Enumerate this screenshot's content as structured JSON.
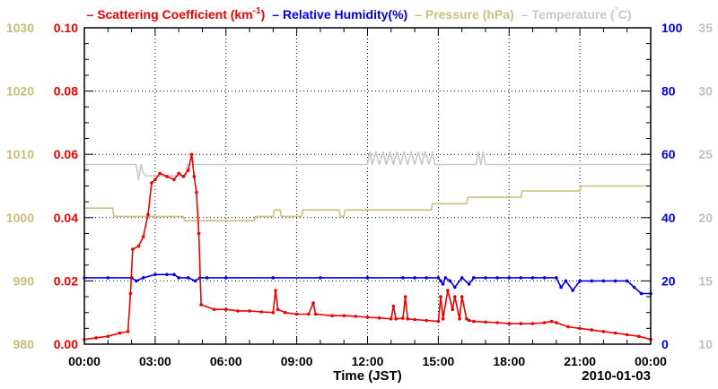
{
  "chart_data": {
    "type": "line",
    "xlabel": "Time (JST)",
    "date_label": "2010-01-03",
    "x_ticks": [
      "00:00",
      "03:00",
      "06:00",
      "09:00",
      "12:00",
      "15:00",
      "18:00",
      "21:00",
      "00:00"
    ],
    "xlim": [
      0,
      24
    ],
    "grid": true,
    "legend": [
      {
        "label": "Scattering Coefficient (km",
        "sup": "-1",
        "tail": ")",
        "color": "#ee0000",
        "marker": "–"
      },
      {
        "label": "Relative Humidity(%)",
        "color": "#0000dd",
        "marker": "–"
      },
      {
        "label": "Pressure (hPa)",
        "color": "#ccc080",
        "marker": "–"
      },
      {
        "label": "Temperature (",
        "sup": "°",
        "tail": "C)",
        "color": "#c8c8c8",
        "marker": "–"
      }
    ],
    "axes": {
      "pressure": {
        "side": "left-outer",
        "color": "#c8bc78",
        "range": [
          980,
          1030
        ],
        "ticks": [
          "980",
          "990",
          "1000",
          "1010",
          "1020",
          "1030"
        ]
      },
      "scattering": {
        "side": "left-inner",
        "color": "#ee0000",
        "range": [
          0,
          0.1
        ],
        "ticks": [
          "0.00",
          "0.02",
          "0.04",
          "0.06",
          "0.08",
          "0.10"
        ]
      },
      "humidity": {
        "side": "right-inner",
        "color": "#0000dd",
        "range": [
          0,
          100
        ],
        "ticks": [
          "0",
          "20",
          "40",
          "60",
          "80",
          "100"
        ]
      },
      "temperature": {
        "side": "right-outer",
        "color": "#c0c0c0",
        "range": [
          10,
          35
        ],
        "ticks": [
          "10",
          "15",
          "20",
          "25",
          "30",
          "35"
        ]
      }
    },
    "series": [
      {
        "name": "Scattering Coefficient",
        "axis": "scattering",
        "color": "#ee0000",
        "markers": true,
        "x": [
          0,
          0.5,
          1.0,
          1.5,
          1.85,
          1.95,
          2.05,
          2.3,
          2.5,
          2.7,
          2.85,
          3.0,
          3.2,
          3.5,
          3.8,
          4.0,
          4.2,
          4.4,
          4.55,
          4.65,
          4.75,
          4.85,
          4.95,
          5.5,
          6.0,
          6.5,
          7.0,
          7.5,
          8.0,
          8.1,
          8.2,
          8.5,
          9.0,
          9.5,
          9.7,
          9.8,
          10.5,
          11.0,
          11.5,
          12.0,
          12.5,
          13.0,
          13.1,
          13.2,
          13.5,
          13.6,
          13.7,
          14.0,
          14.5,
          15.0,
          15.1,
          15.2,
          15.4,
          15.6,
          15.7,
          15.9,
          16.0,
          16.2,
          16.3,
          16.5,
          17.0,
          17.5,
          18.0,
          18.5,
          19.0,
          19.5,
          19.8,
          20.0,
          20.5,
          21.0,
          21.5,
          22.0,
          22.5,
          23.0,
          23.5,
          24.0
        ],
        "y": [
          0.0015,
          0.002,
          0.0025,
          0.0035,
          0.004,
          0.016,
          0.03,
          0.031,
          0.034,
          0.041,
          0.051,
          0.052,
          0.054,
          0.053,
          0.052,
          0.054,
          0.053,
          0.055,
          0.06,
          0.053,
          0.048,
          0.035,
          0.0125,
          0.011,
          0.011,
          0.0105,
          0.0105,
          0.0102,
          0.01,
          0.017,
          0.011,
          0.01,
          0.0095,
          0.0095,
          0.013,
          0.0095,
          0.009,
          0.009,
          0.0088,
          0.0085,
          0.0083,
          0.008,
          0.012,
          0.008,
          0.0082,
          0.015,
          0.008,
          0.0078,
          0.0075,
          0.0072,
          0.015,
          0.008,
          0.017,
          0.011,
          0.015,
          0.008,
          0.015,
          0.008,
          0.0075,
          0.0072,
          0.007,
          0.0068,
          0.0065,
          0.0065,
          0.0065,
          0.0068,
          0.0072,
          0.0068,
          0.0055,
          0.005,
          0.0045,
          0.004,
          0.0035,
          0.003,
          0.0025,
          0.0015
        ]
      },
      {
        "name": "Relative Humidity",
        "axis": "humidity",
        "color": "#0000dd",
        "markers": true,
        "x": [
          0,
          1.0,
          2.0,
          2.2,
          2.5,
          3.0,
          3.5,
          3.8,
          4.0,
          4.4,
          4.7,
          4.9,
          5.2,
          6.0,
          8.0,
          10.0,
          12.0,
          13.5,
          14.0,
          14.5,
          15.0,
          15.1,
          15.2,
          15.3,
          15.5,
          15.7,
          16.0,
          16.3,
          16.5,
          17.0,
          17.5,
          18.0,
          18.5,
          19.0,
          19.5,
          20.0,
          20.2,
          20.4,
          20.7,
          21.0,
          21.5,
          22.0,
          22.5,
          23.0,
          23.3,
          23.6,
          24.0
        ],
        "y": [
          21,
          21,
          21,
          20,
          21,
          22,
          22,
          22,
          21,
          21,
          20,
          21,
          21,
          21,
          21,
          21,
          21,
          21,
          21,
          21,
          21,
          20,
          19,
          21,
          20,
          18,
          21,
          19,
          21,
          21,
          21,
          21,
          21,
          21,
          21,
          21,
          18,
          20,
          17,
          20,
          20,
          20,
          20,
          20,
          18,
          16,
          16
        ]
      },
      {
        "name": "Pressure",
        "axis": "pressure",
        "color": "#ccc080",
        "markers": false,
        "x": [
          0,
          1.2,
          1.25,
          4.2,
          4.25,
          7.2,
          7.25,
          8.0,
          8.05,
          8.3,
          8.35,
          9.2,
          9.25,
          10.8,
          10.85,
          11.0,
          11.05,
          14.7,
          14.75,
          16.2,
          16.25,
          18.5,
          18.55,
          21.0,
          21.05,
          24.0
        ],
        "y": [
          1001.5,
          1001.5,
          1000.2,
          1000.2,
          999.5,
          999.5,
          1000.2,
          1000.2,
          1001.2,
          1001.2,
          1000.2,
          1000.2,
          1001.2,
          1001.2,
          1000.2,
          1000.2,
          1001.2,
          1001.2,
          1002.2,
          1002.2,
          1003.2,
          1003.2,
          1004.2,
          1004.2,
          1005.0,
          1005.0
        ]
      },
      {
        "name": "Temperature",
        "axis": "temperature",
        "color": "#c8c8c8",
        "markers": false,
        "x": [
          0,
          2.2,
          2.3,
          2.4,
          2.5,
          2.6,
          3.0,
          4.3,
          4.35,
          4.6,
          4.65,
          12.0,
          12.1,
          12.2,
          12.35,
          12.5,
          12.65,
          12.8,
          12.95,
          13.1,
          13.25,
          13.4,
          13.55,
          13.7,
          13.85,
          14.0,
          14.15,
          14.3,
          14.45,
          14.6,
          14.75,
          14.85,
          15.0,
          16.6,
          16.7,
          16.8,
          16.9,
          17.0,
          24.0
        ],
        "y": [
          24.2,
          24.2,
          23.0,
          24.2,
          23.5,
          23.3,
          23.3,
          23.3,
          24.2,
          24.2,
          24.2,
          24.2,
          25.2,
          24.2,
          25.2,
          24.2,
          25.2,
          24.2,
          25.2,
          24.2,
          25.2,
          24.2,
          25.2,
          24.2,
          25.2,
          24.2,
          25.2,
          24.2,
          25.2,
          24.2,
          25.2,
          24.2,
          24.2,
          24.2,
          25.2,
          24.2,
          25.2,
          24.2,
          24.2
        ]
      }
    ]
  }
}
